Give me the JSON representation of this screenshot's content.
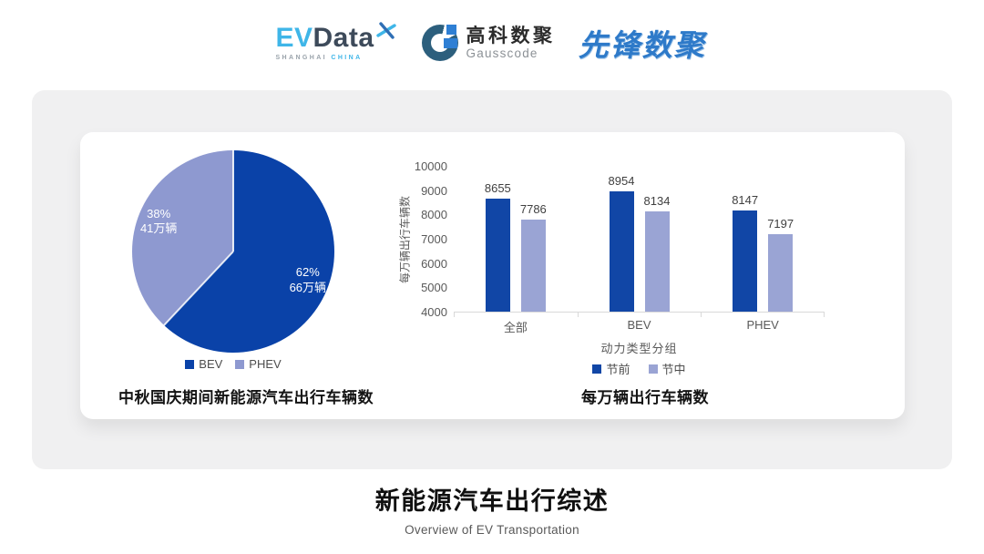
{
  "header": {
    "evdata": {
      "ev": "EV",
      "data": "Data",
      "sub_left": "SHANGHAI ",
      "sub_right": "CHINA",
      "colors": {
        "ev": "#3fb6e8",
        "data": "#3d4a5a"
      }
    },
    "gausscode": {
      "cn": "高科数聚",
      "en": "Gausscode",
      "colors": {
        "arc": "#2c5f7d",
        "accent": "#2e7fd4"
      }
    },
    "pioneer": {
      "text": "先锋数聚",
      "color": "#2e7ac9"
    }
  },
  "footer": {
    "title": "新能源汽车出行综述",
    "subtitle": "Overview of EV Transportation"
  },
  "chart_data": [
    {
      "type": "pie",
      "title": "中秋国庆期间新能源汽车出行车辆数",
      "slices": [
        {
          "label": "BEV",
          "percent": 62,
          "value_label": "66万辆",
          "color": "#0a42a8"
        },
        {
          "label": "PHEV",
          "percent": 38,
          "value_label": "41万辆",
          "color": "#8e99d0"
        }
      ],
      "start_angle_deg": 0,
      "direction": "clockwise",
      "legend_position": "bottom"
    },
    {
      "type": "bar",
      "title": "每万辆出行车辆数",
      "categories": [
        "全部",
        "BEV",
        "PHEV"
      ],
      "series": [
        {
          "name": "节前",
          "values": [
            8655,
            8954,
            8147
          ],
          "color": "#1146a6"
        },
        {
          "name": "节中",
          "values": [
            7786,
            8134,
            7197
          ],
          "color": "#9aa4d4"
        }
      ],
      "xlabel": "动力类型分组",
      "ylabel": "每万辆出行车辆数",
      "ylim": [
        4000,
        10000
      ],
      "ytick_step": 1000,
      "grid": false,
      "value_labels": true,
      "legend_position": "bottom"
    }
  ]
}
